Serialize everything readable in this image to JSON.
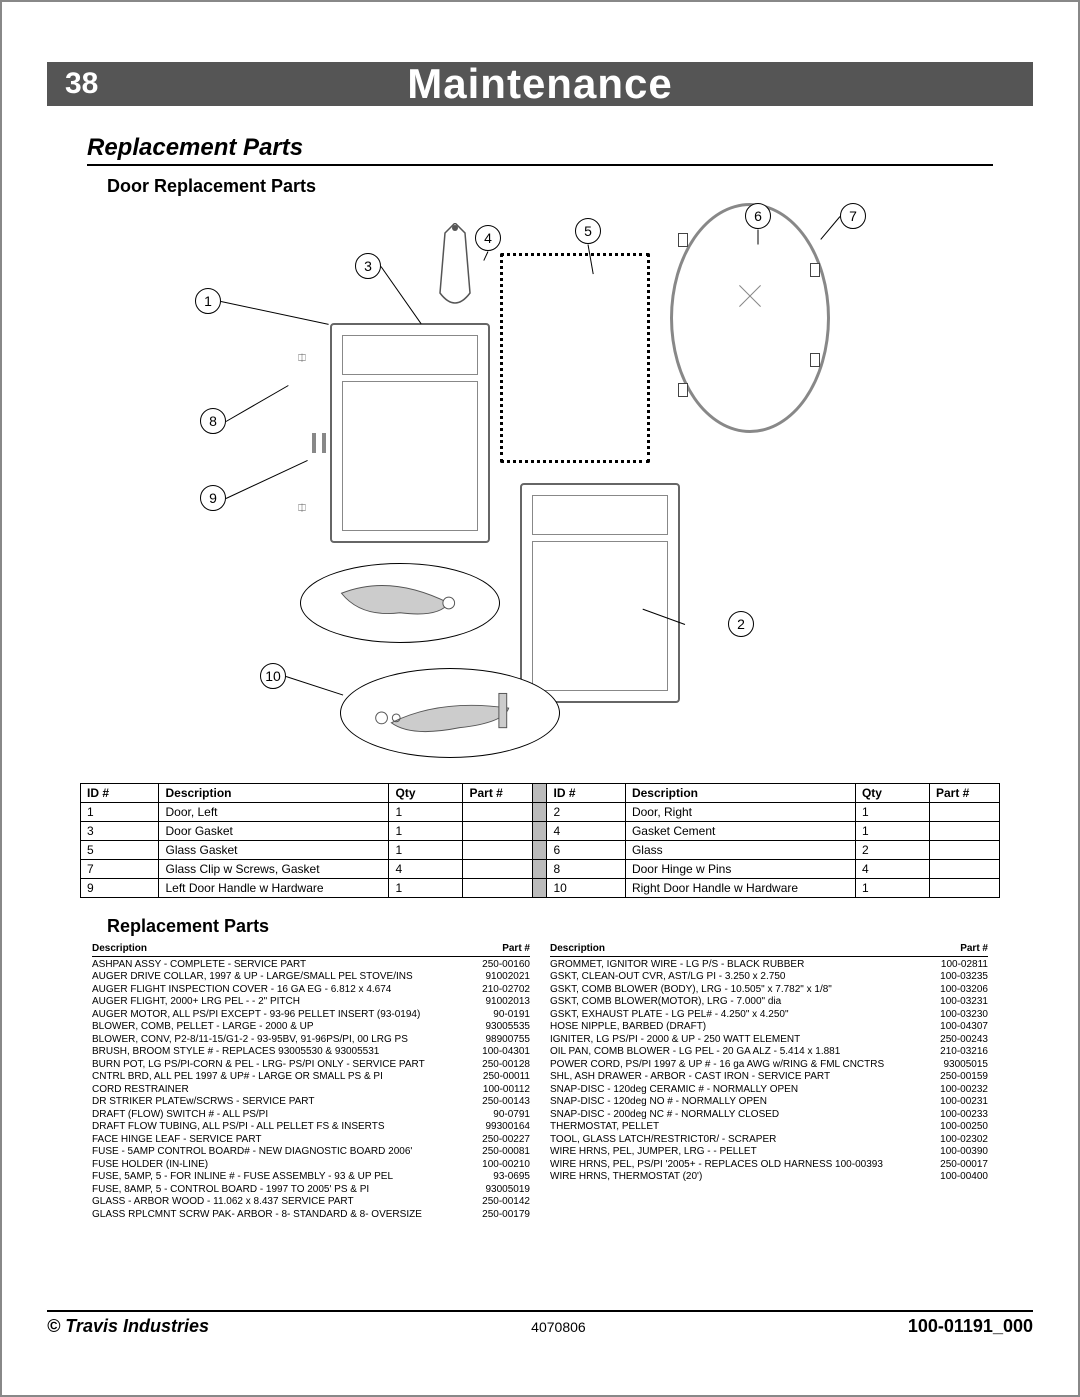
{
  "header": {
    "page_num": "38",
    "title": "Maintenance"
  },
  "section1": "Replacement  Parts",
  "door_h": "Door  Replacement  Parts",
  "callouts": [
    "1",
    "2",
    "3",
    "4",
    "5",
    "6",
    "7",
    "8",
    "9",
    "10"
  ],
  "door_table": {
    "headers": [
      "ID #",
      "Description",
      "Qty",
      "Part #"
    ],
    "rows": [
      [
        "1",
        "Door, Left",
        "1",
        "",
        "2",
        "Door, Right",
        "1",
        ""
      ],
      [
        "3",
        "Door Gasket",
        "1",
        "",
        "4",
        "Gasket Cement",
        "1",
        ""
      ],
      [
        "5",
        "Glass Gasket",
        "1",
        "",
        "6",
        "Glass",
        "2",
        ""
      ],
      [
        "7",
        "Glass Clip w Screws, Gasket",
        "4",
        "",
        "8",
        "Door Hinge w Pins",
        "4",
        ""
      ],
      [
        "9",
        "Left Door Handle w Hardware",
        "1",
        "",
        "10",
        "Right Door Handle w Hardware",
        "1",
        ""
      ]
    ]
  },
  "section2": "Replacement  Parts",
  "list_headers": {
    "desc": "Description",
    "part": "Part #"
  },
  "list_left": [
    [
      "ASHPAN ASSY - COMPLETE - SERVICE PART",
      "250-00160"
    ],
    [
      "AUGER DRIVE COLLAR, 1997 & UP - LARGE/SMALL PEL STOVE/INS",
      "91002021"
    ],
    [
      "AUGER FLIGHT INSPECTION COVER - 16 GA EG - 6.812 x 4.674",
      "210-02702"
    ],
    [
      "AUGER FLIGHT, 2000+ LRG PEL - - 2\" PITCH",
      "91002013"
    ],
    [
      "AUGER MOTOR, ALL PS/PI EXCEPT - 93-96 PELLET INSERT (93-0194)",
      "90-0191"
    ],
    [
      "BLOWER, COMB, PELLET - LARGE - 2000 & UP",
      "93005535"
    ],
    [
      "BLOWER, CONV, P2-8/11-15/G1-2 - 93-95BV, 91-96PS/PI, 00 LRG PS",
      "98900755"
    ],
    [
      "BRUSH, BROOM STYLE # - REPLACES 93005530 & 93005531",
      "100-04301"
    ],
    [
      "BURN POT, LG PS/PI-CORN & PEL - LRG- PS/PI ONLY - SERVICE PART",
      "250-00128"
    ],
    [
      "CNTRL BRD, ALL PEL 1997 & UP# - LARGE OR SMALL PS & PI",
      "250-00011"
    ],
    [
      "CORD RESTRAINER",
      "100-00112"
    ],
    [
      "DR STRIKER PLATEw/SCRWS - SERVICE PART",
      "250-00143"
    ],
    [
      "DRAFT (FLOW) SWITCH # - ALL PS/PI",
      "90-0791"
    ],
    [
      "DRAFT FLOW TUBING, ALL PS/PI - ALL PELLET FS & INSERTS",
      "99300164"
    ],
    [
      "FACE HINGE LEAF - SERVICE PART",
      "250-00227"
    ],
    [
      "FUSE - 5AMP CONTROL BOARD# - NEW DIAGNOSTIC BOARD 2006'",
      "250-00081"
    ],
    [
      "FUSE HOLDER (IN-LINE)",
      "100-00210"
    ],
    [
      "FUSE, 5AMP, 5 - FOR INLINE # - FUSE ASSEMBLY - 93 & UP PEL",
      "93-0695"
    ],
    [
      "FUSE, 8AMP, 5 - CONTROL BOARD - 1997 TO 2005' PS & PI",
      "93005019"
    ],
    [
      "GLASS - ARBOR WOOD - 11.062 x 8.437 SERVICE PART",
      "250-00142"
    ],
    [
      "GLASS RPLCMNT SCRW PAK- ARBOR - 8- STANDARD & 8- OVERSIZE",
      "250-00179"
    ]
  ],
  "list_right": [
    [
      "GROMMET, IGNITOR WIRE - LG P/S - BLACK RUBBER",
      "100-02811"
    ],
    [
      "GSKT, CLEAN-OUT CVR, AST/LG PI - 3.250 x 2.750",
      "100-03235"
    ],
    [
      "GSKT, COMB BLOWER (BODY), LRG - 10.505\" x 7.782\" x 1/8\"",
      "100-03206"
    ],
    [
      "GSKT, COMB BLOWER(MOTOR), LRG - 7.000\" dia",
      "100-03231"
    ],
    [
      "GSKT, EXHAUST PLATE - LG PEL# - 4.250\" x 4.250\"",
      "100-03230"
    ],
    [
      "HOSE NIPPLE, BARBED (DRAFT)",
      "100-04307"
    ],
    [
      "IGNITER, LG PS/PI - 2000 & UP - 250 WATT ELEMENT",
      "250-00243"
    ],
    [
      "OIL PAN, COMB BLOWER - LG PEL - 20 GA ALZ - 5.414 x 1.881",
      "210-03216"
    ],
    [
      "POWER CORD, PS/PI 1997 & UP # - 16 ga AWG w/RING & FML CNCTRS",
      "93005015"
    ],
    [
      "SHL, ASH DRAWER - ARBOR - CAST IRON - SERVICE PART",
      "250-00159"
    ],
    [
      "SNAP-DISC - 120deg CERAMIC # - NORMALLY OPEN",
      "100-00232"
    ],
    [
      "SNAP-DISC - 120deg NO # - NORMALLY OPEN",
      "100-00231"
    ],
    [
      "SNAP-DISC - 200deg NC # - NORMALLY CLOSED",
      "100-00233"
    ],
    [
      "THERMOSTAT, PELLET",
      "100-00250"
    ],
    [
      "TOOL, GLASS LATCH/RESTRICT0R/ - SCRAPER",
      "100-02302"
    ],
    [
      "WIRE HRNS, PEL, JUMPER, LRG - - PELLET",
      "100-00390"
    ],
    [
      "WIRE HRNS, PEL, PS/PI '2005+ - REPLACES OLD HARNESS 100-00393",
      "250-00017"
    ],
    [
      "WIRE HRNS, THERMOSTAT (20')",
      "100-00400"
    ]
  ],
  "footer": {
    "left": "©  Travis  Industries",
    "mid": "4070806",
    "right": "100-01191_000"
  },
  "colors": {
    "header_bg": "#555555",
    "border": "#000000",
    "gray": "#888888",
    "sep": "#bbbbbb"
  }
}
